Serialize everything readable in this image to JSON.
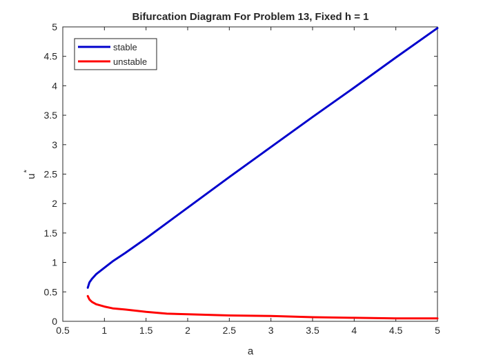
{
  "chart_data": {
    "type": "line",
    "title": "Bifurcation Diagram For Problem 13, Fixed h = 1",
    "xlabel": "a",
    "ylabel_base": "u",
    "ylabel_superscript": "*",
    "xlim": [
      0.5,
      5
    ],
    "ylim": [
      0,
      5
    ],
    "xticks": [
      0.5,
      1,
      1.5,
      2,
      2.5,
      3,
      3.5,
      4,
      4.5,
      5
    ],
    "xtick_labels": [
      "0.5",
      "1",
      "1.5",
      "2",
      "2.5",
      "3",
      "3.5",
      "4",
      "4.5",
      "5"
    ],
    "yticks": [
      0,
      0.5,
      1,
      1.5,
      2,
      2.5,
      3,
      3.5,
      4,
      4.5,
      5
    ],
    "ytick_labels": [
      "0",
      "0.5",
      "1",
      "1.5",
      "2",
      "2.5",
      "3",
      "3.5",
      "4",
      "4.5",
      "5"
    ],
    "grid": false,
    "legend_position": "top-left",
    "series": [
      {
        "name": "stable",
        "color": "#0000cc",
        "x": [
          0.8,
          0.82,
          0.85,
          0.9,
          1.0,
          1.1,
          1.25,
          1.5,
          1.75,
          2.0,
          2.5,
          3.0,
          3.5,
          4.0,
          4.5,
          5.0
        ],
        "y": [
          0.57,
          0.66,
          0.72,
          0.8,
          0.91,
          1.02,
          1.16,
          1.41,
          1.67,
          1.93,
          2.45,
          2.96,
          3.47,
          3.97,
          4.48,
          4.98
        ]
      },
      {
        "name": "unstable",
        "color": "#ff0000",
        "x": [
          0.8,
          0.82,
          0.85,
          0.9,
          1.0,
          1.1,
          1.25,
          1.5,
          1.75,
          2.0,
          2.5,
          3.0,
          3.5,
          4.0,
          4.5,
          5.0
        ],
        "y": [
          0.43,
          0.37,
          0.33,
          0.29,
          0.25,
          0.22,
          0.2,
          0.16,
          0.13,
          0.12,
          0.1,
          0.09,
          0.07,
          0.06,
          0.05,
          0.05
        ]
      }
    ]
  }
}
